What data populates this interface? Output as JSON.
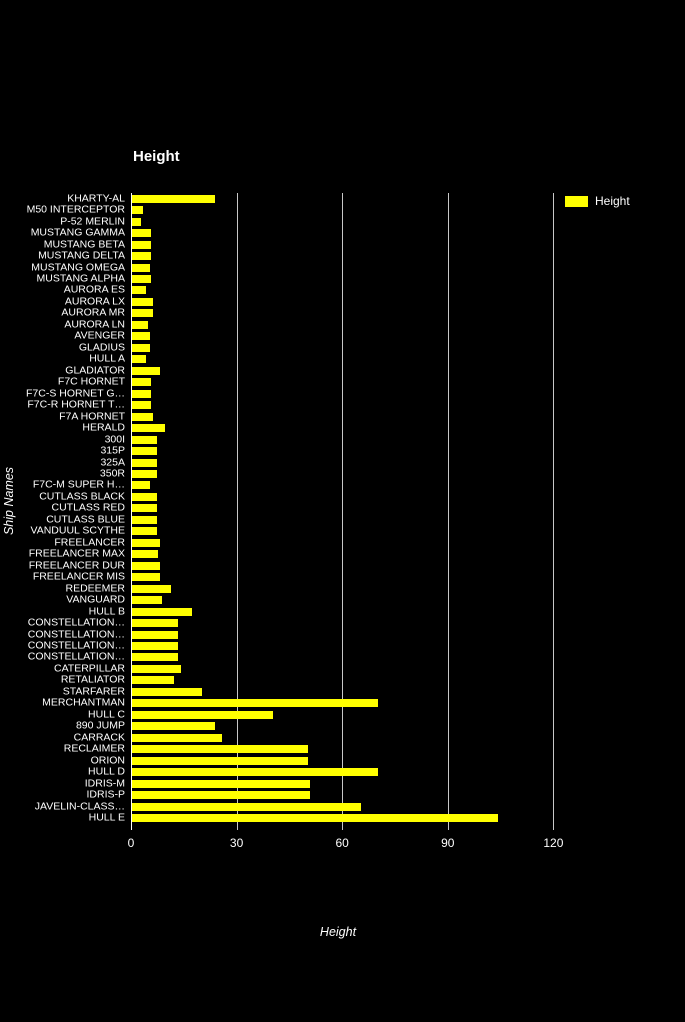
{
  "title": "Height",
  "legend": {
    "label": "Height",
    "swatch_color": "#ffff00"
  },
  "axes": {
    "x_label": "Height",
    "y_label": "Ship Names",
    "x_ticks": [
      0,
      30,
      60,
      90,
      120
    ]
  },
  "colors": {
    "background": "#000000",
    "bar": "#ffff00",
    "text": "#ffffff",
    "gridline": "#c8c8c8"
  },
  "chart_data": {
    "type": "bar",
    "orientation": "horizontal",
    "title": "Height",
    "xlabel": "Height",
    "ylabel": "Ship Names",
    "xlim": [
      0,
      150
    ],
    "x_ticks": [
      0,
      30,
      60,
      90,
      120
    ],
    "grid": "vertical",
    "legend_position": "top-right",
    "legend_entries": [
      "Height"
    ],
    "bar_color": "#ffff00",
    "categories": [
      "KHARTY-AL",
      "M50 INTERCEPTOR",
      "P-52 MERLIN",
      "MUSTANG GAMMA",
      "MUSTANG BETA",
      "MUSTANG DELTA",
      "MUSTANG OMEGA",
      "MUSTANG ALPHA",
      "AURORA ES",
      "AURORA LX",
      "AURORA MR",
      "AURORA LN",
      "AVENGER",
      "GLADIUS",
      "HULL A",
      "GLADIATOR",
      "F7C HORNET",
      "F7C-S HORNET G…",
      "F7C-R HORNET T…",
      "F7A HORNET",
      "HERALD",
      "300I",
      "315P",
      "325A",
      "350R",
      "F7C-M SUPER H…",
      "CUTLASS BLACK",
      "CUTLASS RED",
      "CUTLASS BLUE",
      "VANDUUL SCYTHE",
      "FREELANCER",
      "FREELANCER MAX",
      "FREELANCER DUR",
      "FREELANCER MIS",
      "REDEEMER",
      "VANGUARD",
      "HULL B",
      "CONSTELLATION…",
      "CONSTELLATION…",
      "CONSTELLATION…",
      "CONSTELLATION…",
      "CATERPILLAR",
      "RETALIATOR",
      "STARFARER",
      "MERCHANTMAN",
      "HULL C",
      "890 JUMP",
      "CARRACK",
      "RECLAIMER",
      "ORION",
      "HULL D",
      "IDRIS-M",
      "IDRIS-P",
      "JAVELIN-CLASS…",
      "HULL E"
    ],
    "values": [
      23.5,
      3,
      2.5,
      5.5,
      5.5,
      5.5,
      5,
      5.5,
      4,
      6,
      6,
      4.5,
      5,
      5,
      4,
      8,
      5.5,
      5.5,
      5.5,
      6,
      9.5,
      7,
      7,
      7,
      7,
      5,
      7,
      7,
      7,
      7,
      8,
      7.5,
      8,
      8,
      11,
      8.5,
      17,
      13,
      13,
      13,
      13,
      14,
      12,
      20,
      70,
      40,
      23.5,
      25.5,
      50,
      50,
      70,
      50.5,
      50.5,
      65,
      104
    ]
  }
}
